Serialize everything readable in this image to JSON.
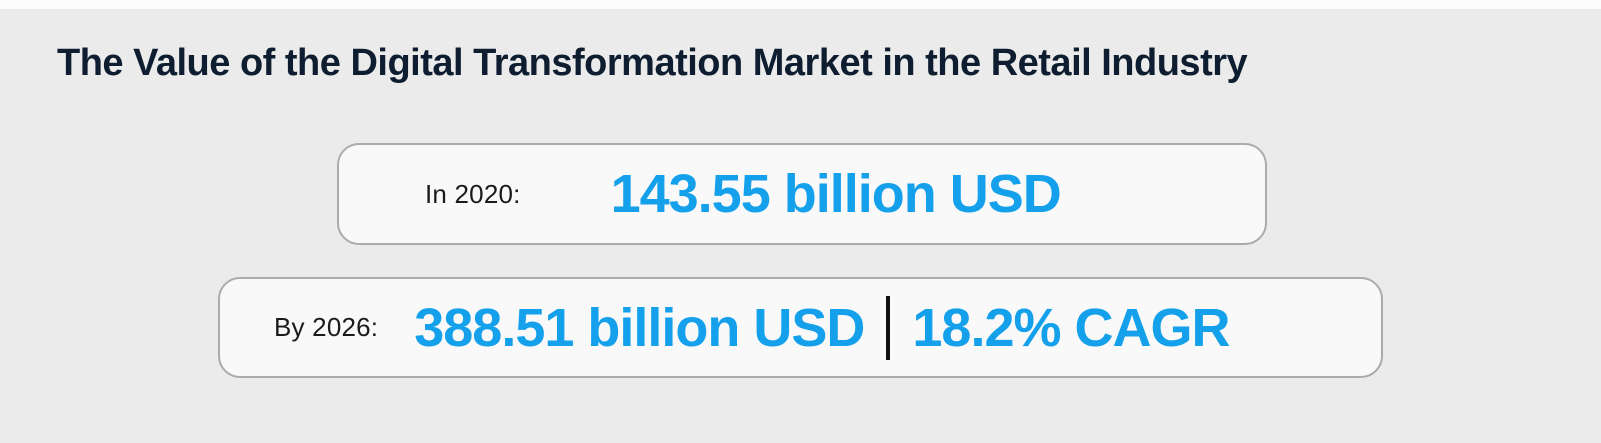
{
  "title": "The Value of the Digital Transformation Market in the Retail Industry",
  "cards": [
    {
      "label": "In 2020:",
      "value": "143.55 billion USD"
    },
    {
      "label": "By 2026:",
      "value": "388.51 billion USD",
      "secondary_value": "18.2% CAGR"
    }
  ],
  "colors": {
    "background": "#ebebeb",
    "top_strip": "#fbfbfb",
    "card_background": "#f9f9f9",
    "card_border": "#ababab",
    "title_text": "#0e1e30",
    "label_text": "#1b1b1b",
    "accent_blue": "#14a0eb",
    "separator_black": "#111111"
  },
  "chart_data": {
    "type": "table",
    "title": "The Value of the Digital Transformation Market in the Retail Industry",
    "categories": [
      "In 2020",
      "By 2026"
    ],
    "series": [
      {
        "name": "Digital transformation market value in retail (billion USD)",
        "values": [
          143.55,
          388.51
        ]
      }
    ],
    "unit": "billion USD",
    "annotations": [
      "18.2% CAGR (2020–2026)"
    ]
  }
}
